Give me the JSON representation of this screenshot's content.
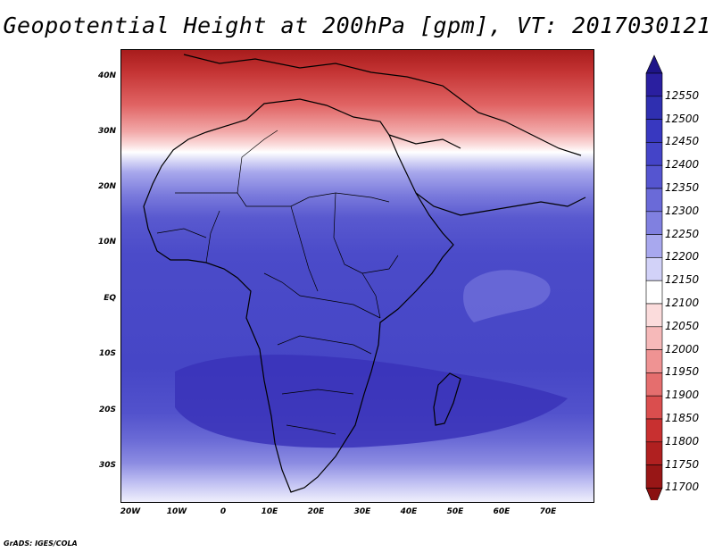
{
  "title": "Geopotential Height at 200hPa [gpm], VT: 2017030121",
  "credit": "GrADS: IGES/COLA",
  "lat_labels": [
    "40N",
    "30N",
    "20N",
    "10N",
    "EQ",
    "10S",
    "20S",
    "30S"
  ],
  "lon_labels": [
    "20W",
    "10W",
    "0",
    "10E",
    "20E",
    "30E",
    "40E",
    "50E",
    "60E",
    "70E"
  ],
  "colorbar": {
    "levels": [
      "12550",
      "12500",
      "12450",
      "12400",
      "12350",
      "12300",
      "12250",
      "12200",
      "12150",
      "12100",
      "12050",
      "12000",
      "11950",
      "11900",
      "11850",
      "11800",
      "11750",
      "11700"
    ],
    "colors": [
      "#2a1fa0",
      "#2f2fb0",
      "#3838c0",
      "#4444c8",
      "#5555d0",
      "#6a6ad8",
      "#8080e0",
      "#a8a8ee",
      "#d2d2f8",
      "#ffffff",
      "#fbdcdc",
      "#f6b9b9",
      "#ef9393",
      "#e56e6e",
      "#da4e4e",
      "#c83030",
      "#b02020",
      "#981616"
    ],
    "top_color": "#1e1488",
    "bottom_color": "#8a1010"
  }
}
